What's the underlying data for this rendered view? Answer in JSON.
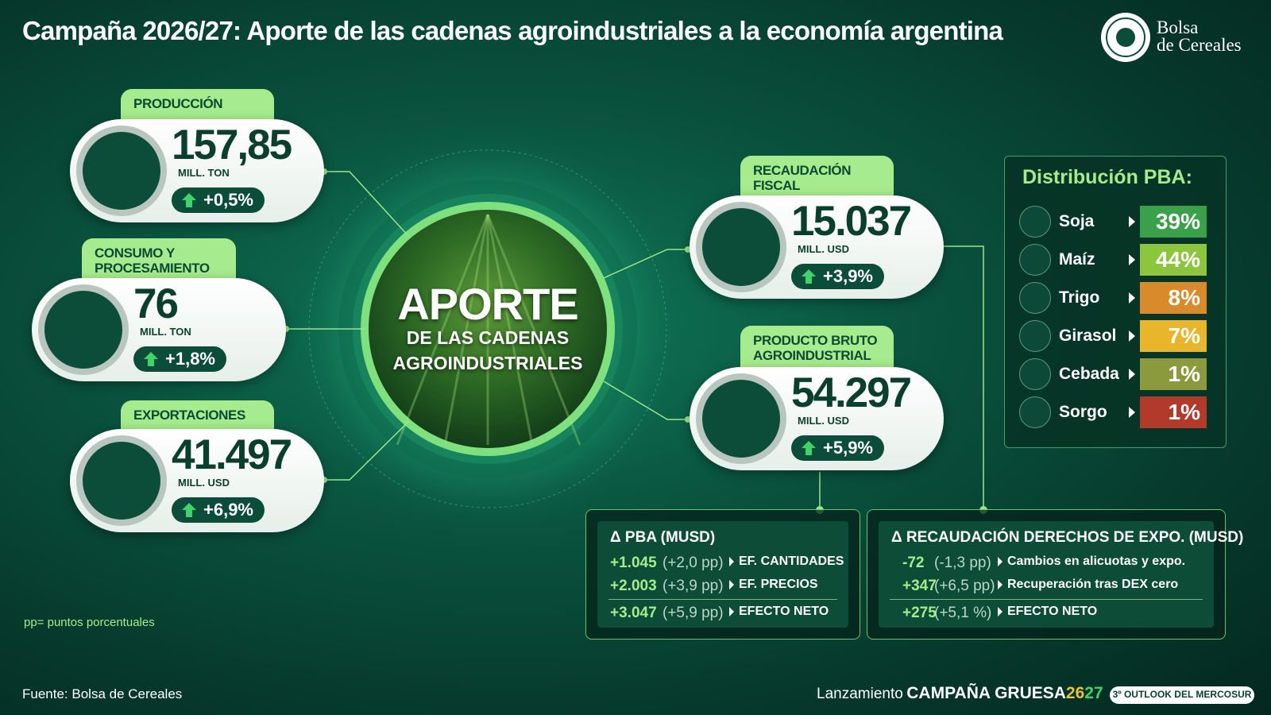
{
  "header": {
    "title": "Campaña 2026/27: Aporte de las cadenas agroindustriales a la economía argentina",
    "logo": [
      "Bolsa",
      "de Cereales"
    ]
  },
  "center": {
    "title": "APORTE",
    "lines": [
      "DE LAS CADENAS",
      "AGROINDUSTRIALES"
    ]
  },
  "cards": [
    {
      "label": "PRODUCCIÓN",
      "value": "157,85",
      "unit": "MILL. TON",
      "change": "+0,5%"
    },
    {
      "label": "CONSUMO Y PROCESAMIENTO",
      "value": "76",
      "unit": "MILL. TON",
      "change": "+1,8%"
    },
    {
      "label": "EXPORTACIONES",
      "value": "41.497",
      "unit": "MILL. USD",
      "change": "+6,9%"
    },
    {
      "label": "RECAUDACIÓN FISCAL",
      "value": "15.037",
      "unit": "MILL. USD",
      "change": "+3,9%"
    },
    {
      "label": "PRODUCTO BRUTO AGROINDUSTRIAL",
      "value": "54.297",
      "unit": "MILL. USD",
      "change": "+5,9%"
    }
  ],
  "distribution": {
    "title": "Distribución PBA:",
    "items": [
      {
        "name": "Soja",
        "value": "39%"
      },
      {
        "name": "Maíz",
        "value": "44%"
      },
      {
        "name": "Trigo",
        "value": "8%"
      },
      {
        "name": "Girasol",
        "value": "7%"
      },
      {
        "name": "Cebada",
        "value": "1%"
      },
      {
        "name": "Sorgo",
        "value": "1%"
      }
    ]
  },
  "boxes": [
    {
      "title": "Δ PBA (MUSD)",
      "rows": [
        [
          "+1.045",
          "(+2,0 pp)",
          "EF. CANTIDADES"
        ],
        [
          "+2.003",
          "(+3,9 pp)",
          "EF. PRECIOS"
        ],
        [
          "+3.047",
          "(+5,9 pp)",
          "EFECTO NETO"
        ]
      ]
    },
    {
      "title": "Δ RECAUDACIÓN DERECHOS DE EXPO. (MUSD)",
      "rows": [
        [
          "-72",
          "(-1,3 pp)",
          "Cambios en alicuotas y expo."
        ],
        [
          "+347",
          "(+6,5 pp)",
          "Recuperación tras DEX cero"
        ],
        [
          "+275",
          "(+5,1 %)",
          "EFECTO NETO"
        ]
      ]
    }
  ],
  "footer": {
    "note": "pp= puntos porcentuales",
    "source": "Fuente: Bolsa de Cereales",
    "launch": "Lanzamiento",
    "campaign": "CAMPAÑA GRUESA",
    "year_a": "26",
    "year_b": "27",
    "badge": "3º OUTLOOK DEL MERCOSUR"
  }
}
